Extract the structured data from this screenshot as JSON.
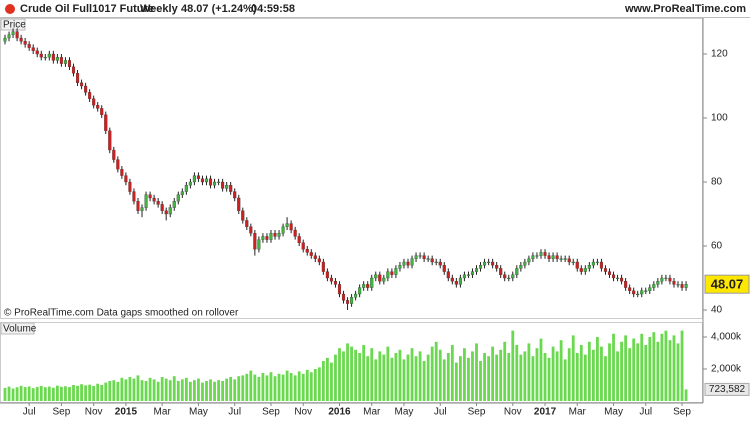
{
  "header": {
    "instrument": "Crude Oil Full1017 Future",
    "period": "Weekly",
    "quote": "48.07 (+1.24%)",
    "time": "04:59:58",
    "site": "www.ProRealTime.com"
  },
  "chart_data": {
    "type": "candlestick",
    "price_label": "Price",
    "volume_label": "Volume",
    "note": "© ProRealTime.com  Data gaps smoothed on rollover",
    "categories": [
      null,
      null,
      null,
      null,
      null,
      null,
      "Jul",
      null,
      null,
      null,
      null,
      null,
      null,
      null,
      "Sep",
      null,
      null,
      null,
      null,
      null,
      null,
      null,
      "Nov",
      null,
      null,
      null,
      null,
      null,
      null,
      null,
      "2015",
      null,
      null,
      null,
      null,
      null,
      null,
      null,
      null,
      "Mar",
      null,
      null,
      null,
      null,
      null,
      null,
      null,
      null,
      "May",
      null,
      null,
      null,
      null,
      null,
      null,
      null,
      null,
      "Jul",
      null,
      null,
      null,
      null,
      null,
      null,
      null,
      null,
      "Sep",
      null,
      null,
      null,
      null,
      null,
      null,
      null,
      "Nov",
      null,
      null,
      null,
      null,
      null,
      null,
      null,
      null,
      "2016",
      null,
      null,
      null,
      null,
      null,
      null,
      null,
      "Mar",
      null,
      null,
      null,
      null,
      null,
      null,
      null,
      "May",
      null,
      null,
      null,
      null,
      null,
      null,
      null,
      null,
      "Jul",
      null,
      null,
      null,
      null,
      null,
      null,
      null,
      null,
      "Sep",
      null,
      null,
      null,
      null,
      null,
      null,
      null,
      null,
      "Nov",
      null,
      null,
      null,
      null,
      null,
      null,
      null,
      "2017",
      null,
      null,
      null,
      null,
      null,
      null,
      null,
      "Mar",
      null,
      null,
      null,
      null,
      null,
      null,
      null,
      null,
      "May",
      null,
      null,
      null,
      null,
      null,
      null,
      null,
      "Jul",
      null,
      null,
      null,
      null,
      null,
      null,
      null,
      null,
      "Sep",
      null
    ],
    "open": [
      124,
      125,
      126,
      127,
      125,
      124,
      123,
      122,
      121,
      120,
      119,
      119,
      120,
      118,
      119,
      117,
      118,
      116,
      114,
      111,
      110,
      108,
      106,
      104,
      103,
      101,
      96,
      90,
      87,
      84,
      82,
      80,
      77,
      74,
      71,
      72,
      76,
      75,
      74,
      73,
      71,
      70,
      72,
      74,
      76,
      77,
      79,
      80,
      82,
      81,
      80,
      81,
      79,
      80,
      80,
      78,
      79,
      77,
      75,
      71,
      68,
      66,
      64,
      59,
      62,
      63,
      62,
      64,
      63,
      64,
      66,
      67,
      65,
      63,
      61,
      59,
      58,
      57,
      56,
      55,
      52,
      50,
      49,
      48,
      45,
      43,
      42,
      44,
      45,
      47,
      48,
      47,
      50,
      51,
      49,
      50,
      52,
      51,
      53,
      54,
      55,
      54,
      56,
      57,
      57,
      56,
      56,
      55,
      55,
      54,
      52,
      50,
      49,
      48,
      50,
      51,
      51,
      52,
      53,
      54,
      55,
      55,
      54,
      53,
      51,
      50,
      50,
      51,
      53,
      54,
      55,
      56,
      57,
      57,
      58,
      57,
      56,
      57,
      56,
      56,
      56,
      55,
      55,
      53,
      52,
      53,
      54,
      55,
      55,
      53,
      52,
      51,
      50,
      50,
      49,
      47,
      46,
      45,
      45,
      46,
      46,
      47,
      48,
      49,
      50,
      50,
      49,
      48,
      48,
      47
    ],
    "high": [
      126,
      127,
      128,
      128,
      126,
      125,
      124,
      123,
      122,
      121,
      120,
      121,
      121,
      120,
      120,
      119,
      119,
      117,
      115,
      112,
      111,
      109,
      107,
      105,
      104,
      102,
      97,
      91,
      88,
      85,
      83,
      81,
      78,
      75,
      73,
      77,
      77,
      76,
      75,
      74,
      72,
      73,
      75,
      77,
      78,
      80,
      81,
      83,
      83,
      82,
      82,
      82,
      81,
      81,
      81,
      80,
      80,
      78,
      76,
      72,
      69,
      67,
      65,
      63,
      64,
      64,
      65,
      65,
      65,
      67,
      69,
      68,
      66,
      64,
      62,
      60,
      59,
      58,
      57,
      56,
      53,
      51,
      50,
      49,
      46,
      44,
      45,
      46,
      48,
      49,
      49,
      51,
      52,
      52,
      51,
      53,
      53,
      54,
      55,
      56,
      56,
      57,
      58,
      58,
      58,
      57,
      57,
      56,
      56,
      55,
      53,
      51,
      50,
      51,
      52,
      52,
      53,
      54,
      55,
      56,
      56,
      56,
      55,
      54,
      52,
      51,
      52,
      54,
      55,
      56,
      57,
      58,
      58,
      59,
      59,
      58,
      58,
      58,
      57,
      57,
      57,
      56,
      56,
      54,
      54,
      55,
      56,
      56,
      56,
      54,
      53,
      52,
      51,
      51,
      50,
      48,
      47,
      46,
      47,
      47,
      48,
      49,
      50,
      51,
      51,
      51,
      50,
      49,
      49,
      49
    ],
    "low": [
      123,
      124,
      125,
      124,
      123,
      122,
      121,
      120,
      119,
      118,
      118,
      118,
      117,
      117,
      116,
      116,
      115,
      113,
      110,
      109,
      107,
      105,
      103,
      102,
      100,
      95,
      89,
      86,
      83,
      81,
      79,
      76,
      73,
      70,
      69,
      71,
      74,
      73,
      72,
      70,
      68,
      69,
      71,
      73,
      75,
      76,
      78,
      79,
      80,
      79,
      79,
      78,
      78,
      79,
      77,
      77,
      76,
      74,
      70,
      67,
      65,
      63,
      57,
      58,
      61,
      61,
      61,
      62,
      62,
      63,
      65,
      64,
      62,
      60,
      58,
      57,
      56,
      55,
      54,
      51,
      49,
      48,
      47,
      44,
      42,
      40,
      41,
      43,
      44,
      46,
      46,
      46,
      49,
      48,
      48,
      49,
      50,
      50,
      52,
      53,
      53,
      53,
      55,
      56,
      55,
      55,
      54,
      54,
      53,
      51,
      49,
      48,
      47,
      47,
      49,
      50,
      50,
      51,
      52,
      53,
      54,
      53,
      52,
      50,
      49,
      49,
      49,
      50,
      52,
      53,
      54,
      55,
      56,
      56,
      56,
      55,
      55,
      55,
      55,
      55,
      54,
      54,
      52,
      51,
      51,
      52,
      53,
      54,
      52,
      51,
      50,
      49,
      49,
      48,
      46,
      45,
      44,
      44,
      44,
      45,
      45,
      46,
      47,
      48,
      49,
      48,
      47,
      47,
      46,
      46
    ],
    "close": [
      125,
      126,
      127,
      125,
      124,
      123,
      122,
      121,
      120,
      119,
      119,
      120,
      118,
      119,
      117,
      118,
      116,
      114,
      111,
      110,
      108,
      106,
      104,
      103,
      101,
      96,
      90,
      87,
      84,
      82,
      80,
      77,
      74,
      71,
      72,
      76,
      75,
      74,
      73,
      71,
      70,
      72,
      74,
      76,
      77,
      79,
      80,
      82,
      81,
      80,
      81,
      79,
      80,
      80,
      78,
      79,
      77,
      75,
      71,
      68,
      66,
      64,
      59,
      62,
      63,
      62,
      64,
      63,
      64,
      66,
      67,
      65,
      63,
      61,
      59,
      58,
      57,
      56,
      55,
      52,
      50,
      49,
      48,
      45,
      43,
      42,
      44,
      45,
      47,
      48,
      47,
      50,
      51,
      49,
      50,
      52,
      51,
      53,
      54,
      55,
      54,
      56,
      57,
      57,
      56,
      56,
      55,
      55,
      54,
      52,
      50,
      49,
      48,
      50,
      51,
      51,
      52,
      53,
      54,
      55,
      55,
      54,
      53,
      51,
      50,
      50,
      51,
      53,
      54,
      55,
      56,
      57,
      57,
      58,
      57,
      56,
      57,
      56,
      56,
      56,
      55,
      55,
      53,
      52,
      53,
      54,
      55,
      55,
      53,
      52,
      51,
      50,
      50,
      49,
      47,
      46,
      45,
      45,
      46,
      46,
      47,
      48,
      49,
      50,
      50,
      49,
      48,
      48,
      47,
      48.07
    ],
    "volume": [
      820000,
      900000,
      780000,
      860000,
      950000,
      870000,
      910000,
      800000,
      880000,
      940000,
      860000,
      900000,
      830000,
      960000,
      890000,
      920000,
      870000,
      1000000,
      950000,
      1050000,
      980000,
      1020000,
      940000,
      1080000,
      1000000,
      1150000,
      1250000,
      1300000,
      1200000,
      1450000,
      1350000,
      1500000,
      1400000,
      1600000,
      1300000,
      1250000,
      1450000,
      1350000,
      1200000,
      1500000,
      1400000,
      1300000,
      1550000,
      1250000,
      1350000,
      1450000,
      1200000,
      1300000,
      1400000,
      1150000,
      1250000,
      1350000,
      1200000,
      1300000,
      1250000,
      1400000,
      1500000,
      1350000,
      1550000,
      1600000,
      1700000,
      1900000,
      1650000,
      1500000,
      1750000,
      1600000,
      1800000,
      1550000,
      1700000,
      1650000,
      1900000,
      1750000,
      1600000,
      1850000,
      1700000,
      1950000,
      1800000,
      2000000,
      2100000,
      2500000,
      2700000,
      2400000,
      2900000,
      3300000,
      3100000,
      3600000,
      3400000,
      3200000,
      3000000,
      3500000,
      2800000,
      3300000,
      2600000,
      3100000,
      2900000,
      3400000,
      2700000,
      3000000,
      3200000,
      2600000,
      2900000,
      3300000,
      2800000,
      3100000,
      2500000,
      2900000,
      3400000,
      3700000,
      3200000,
      2600000,
      3000000,
      3500000,
      2400000,
      2800000,
      3300000,
      2700000,
      3100000,
      3600000,
      2500000,
      3000000,
      2800000,
      3400000,
      2900000,
      3200000,
      3700000,
      3000000,
      4400000,
      3500000,
      2900000,
      3100000,
      3600000,
      2800000,
      3300000,
      3900000,
      3000000,
      2700000,
      3400000,
      3100000,
      3800000,
      2600000,
      3300000,
      4100000,
      3000000,
      3500000,
      2900000,
      3700000,
      3200000,
      4000000,
      3400000,
      2800000,
      3600000,
      4200000,
      3100000,
      3700000,
      4100000,
      3300000,
      3900000,
      3600000,
      4200000,
      3500000,
      4000000,
      4300000,
      3700000,
      4200000,
      4400000,
      3800000,
      4100000,
      3600000,
      4400000,
      723582
    ],
    "volume_value_label": "723,582",
    "ylim": [
      37.5,
      131.25
    ],
    "yticks": [
      40,
      60,
      80,
      100,
      120
    ],
    "volume_ylim": [
      0,
      4812000
    ],
    "volume_yticks": [
      {
        "value": 2000000,
        "label": "2,000k"
      },
      {
        "value": 4000000,
        "label": "4,000k"
      }
    ],
    "up_color": "#3fb43f",
    "down_color": "#cc2020",
    "wick_color": "#222222",
    "volume_color": "#6ad94f",
    "grid": false
  }
}
